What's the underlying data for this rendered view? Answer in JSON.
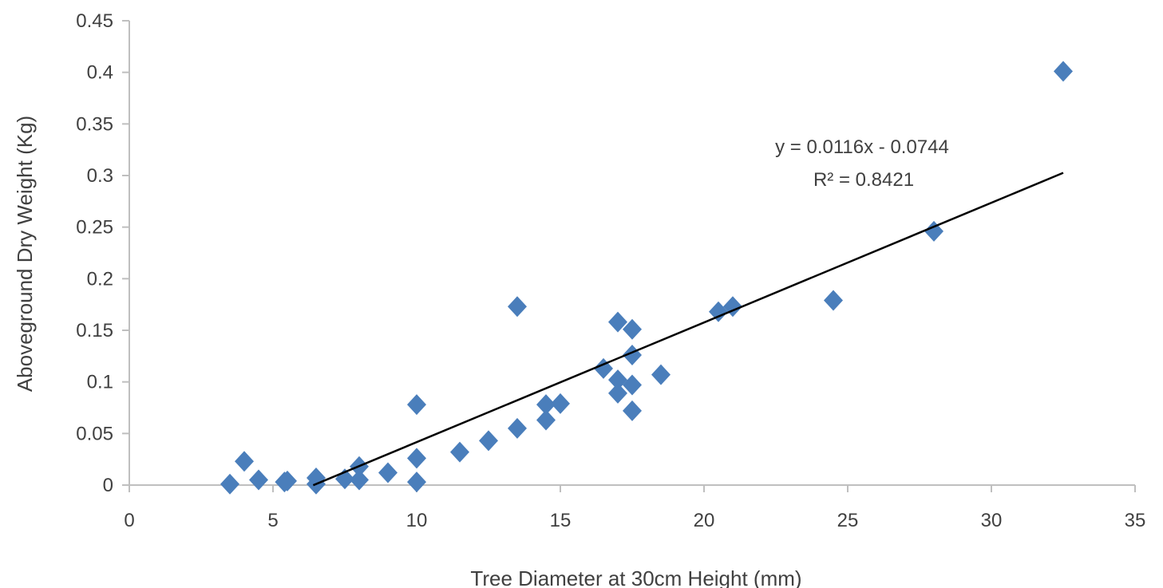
{
  "chart_data": {
    "type": "scatter",
    "title": "",
    "xlabel": "Tree Diameter at 30cm Height  (mm)",
    "ylabel": "Aboveground Dry Weight (Kg)",
    "xlim": [
      0,
      35
    ],
    "ylim": [
      0,
      0.45
    ],
    "xticks": [
      0,
      5,
      10,
      15,
      20,
      25,
      30,
      35
    ],
    "xtick_labels": [
      "0",
      "5",
      "10",
      "15",
      "20",
      "25",
      "30",
      "35"
    ],
    "yticks": [
      0,
      0.05,
      0.1,
      0.15,
      0.2,
      0.25,
      0.3,
      0.35,
      0.4,
      0.45
    ],
    "ytick_labels": [
      "0",
      "0.05",
      "0.1",
      "0.15",
      "0.2",
      "0.25",
      "0.3",
      "0.35",
      "0.4",
      "0.45"
    ],
    "grid": false,
    "legend": "none",
    "marker": "diamond",
    "marker_color": "#4a7ebb",
    "line_color": "#000000",
    "series": [
      {
        "points": [
          [
            3.5,
            0.001
          ],
          [
            4.0,
            0.023
          ],
          [
            4.5,
            0.005
          ],
          [
            5.4,
            0.003
          ],
          [
            5.5,
            0.004
          ],
          [
            6.5,
            0.007
          ],
          [
            6.5,
            0.001
          ],
          [
            7.5,
            0.006
          ],
          [
            8.0,
            0.018
          ],
          [
            8.0,
            0.005
          ],
          [
            9.0,
            0.012
          ],
          [
            10.0,
            0.078
          ],
          [
            10.0,
            0.026
          ],
          [
            10.0,
            0.003
          ],
          [
            11.5,
            0.032
          ],
          [
            12.5,
            0.043
          ],
          [
            13.5,
            0.173
          ],
          [
            13.5,
            0.055
          ],
          [
            14.5,
            0.078
          ],
          [
            14.5,
            0.063
          ],
          [
            15.0,
            0.079
          ],
          [
            16.5,
            0.113
          ],
          [
            17.0,
            0.158
          ],
          [
            17.0,
            0.102
          ],
          [
            17.0,
            0.089
          ],
          [
            17.5,
            0.151
          ],
          [
            17.5,
            0.126
          ],
          [
            17.5,
            0.097
          ],
          [
            17.5,
            0.072
          ],
          [
            18.5,
            0.107
          ],
          [
            20.5,
            0.168
          ],
          [
            21.0,
            0.173
          ],
          [
            24.5,
            0.179
          ],
          [
            28.0,
            0.246
          ],
          [
            32.5,
            0.401
          ]
        ]
      }
    ],
    "trendline": {
      "type": "linear",
      "slope": 0.0116,
      "intercept": -0.0744,
      "x_range": [
        6.4,
        32.5
      ]
    },
    "annotations": {
      "equation": "y = 0.0116x - 0.0744",
      "r_squared": "R² = 0.8421"
    }
  }
}
